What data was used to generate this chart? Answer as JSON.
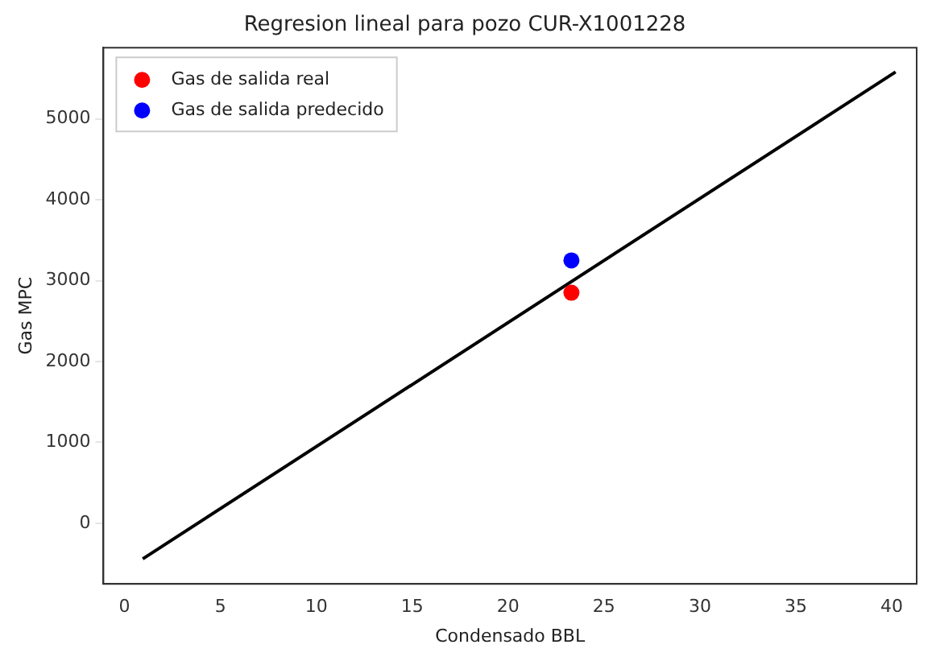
{
  "chart_data": {
    "type": "scatter",
    "title": "Regresion lineal para pozo CUR-X1001228",
    "xlabel": "Condensado BBL",
    "ylabel": "Gas MPC",
    "series": [
      {
        "name": "Gas de salida real",
        "color": "#ff0000",
        "x": [
          23.3
        ],
        "values": [
          2850
        ]
      },
      {
        "name": "Gas de salida predecido",
        "color": "#0000ff",
        "x": [
          23.3
        ],
        "values": [
          3250
        ]
      },
      {
        "type": "line",
        "color": "#000000",
        "x": [
          0.95,
          40.2
        ],
        "values": [
          -440,
          5580
        ],
        "marker": "none"
      }
    ],
    "xlim": [
      -1.1,
      41.3
    ],
    "xticks": [
      0,
      5,
      10,
      15,
      20,
      25,
      30,
      35,
      40
    ],
    "ylim": [
      -750,
      5880
    ],
    "yticks": [
      0,
      1000,
      2000,
      3000,
      4000,
      5000
    ],
    "grid": false,
    "legend": "top left",
    "marker": "circle"
  }
}
